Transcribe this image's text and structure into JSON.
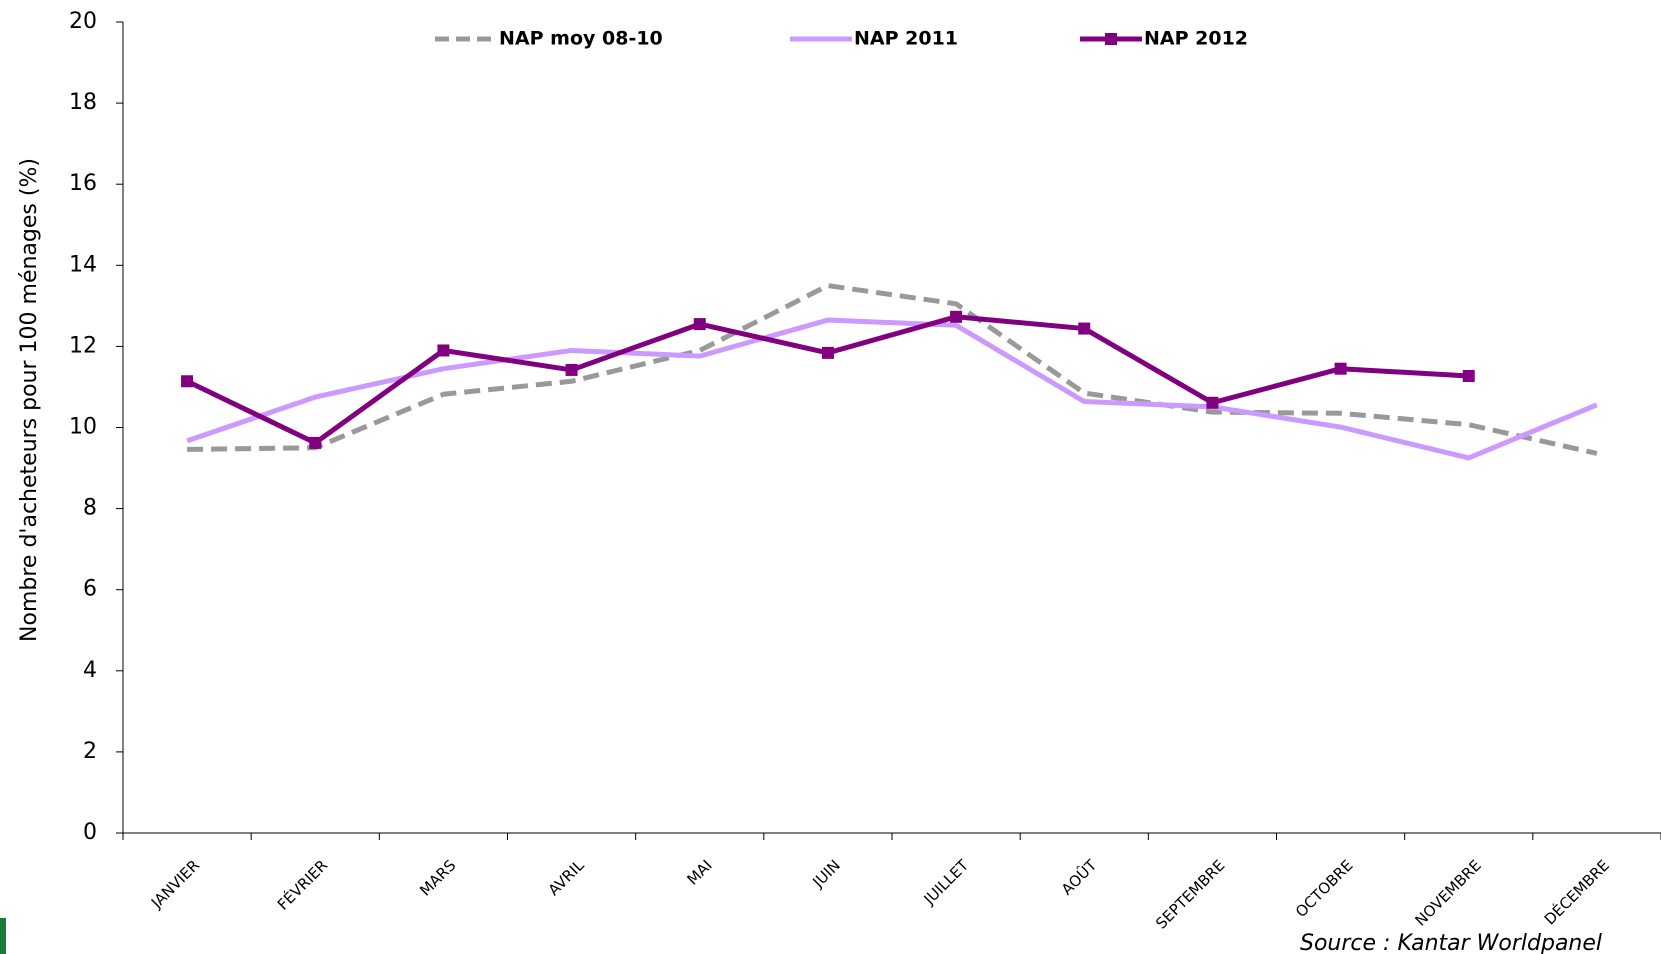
{
  "chart_data": {
    "type": "line",
    "ylabel": "Nombre d'acheteurs pour 100 ménages (%)",
    "source": "Source : Kantar Worldpanel",
    "categories": [
      "JANVIER",
      "FÉVRIER",
      "MARS",
      "AVRIL",
      "MAI",
      "JUIN",
      "JUILLET",
      "AOÛT",
      "SEPTEMBRE",
      "OCTOBRE",
      "NOVEMBRE",
      "DÉCEMBRE"
    ],
    "series": [
      {
        "name": "NAP moy 08-10",
        "color": "#999999",
        "dash": true,
        "markers": false,
        "values": [
          9.46,
          9.5,
          10.82,
          11.14,
          11.9,
          13.5,
          13.05,
          10.85,
          10.38,
          10.35,
          10.07,
          9.36
        ]
      },
      {
        "name": "NAP 2011",
        "color": "#cc99ff",
        "dash": false,
        "markers": false,
        "values": [
          9.67,
          10.75,
          11.45,
          11.9,
          11.76,
          12.65,
          12.52,
          10.64,
          10.51,
          10.01,
          9.25,
          10.56
        ]
      },
      {
        "name": "NAP 2012",
        "color": "#800080",
        "dash": false,
        "markers": true,
        "values": [
          11.14,
          9.62,
          11.9,
          11.42,
          12.55,
          11.84,
          12.73,
          12.44,
          10.61,
          11.45,
          11.27,
          null
        ]
      }
    ],
    "ylim": [
      0,
      20
    ],
    "yticks": [
      0,
      2,
      4,
      6,
      8,
      10,
      12,
      14,
      16,
      18,
      20
    ],
    "grid": false
  }
}
